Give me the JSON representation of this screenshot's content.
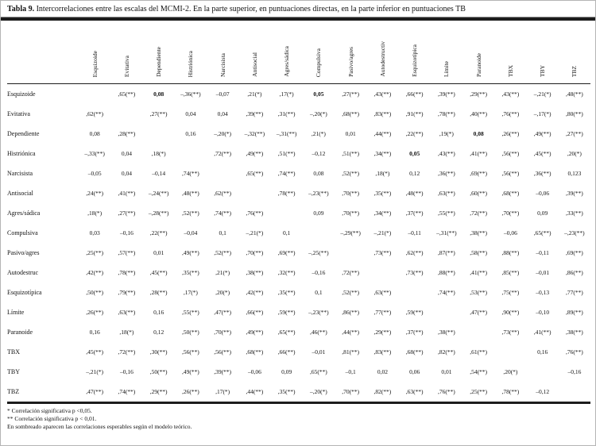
{
  "title": {
    "label": "Tabla 9.",
    "text": "Intercorrelaciones entre las escalas del MCMI-2. En la parte superior, en puntuaciones directas, en la parte inferior en puntuaciones TB"
  },
  "table": {
    "columns": [
      "Esquizoide",
      "Evitativa",
      "Dependiente",
      "Histriónica",
      "Narcisista",
      "Antisocial",
      "Agres/sádica",
      "Compulsiva",
      "Pasivo/agres",
      "Autodestructiv",
      "Esquizotípica",
      "Límite",
      "Paranoide",
      "TBX",
      "TBY",
      "TBZ"
    ],
    "rows": [
      {
        "label": "Esquizoide",
        "values": [
          "",
          ",65(**)",
          "0,08",
          "–,36(**)",
          "–0,07",
          ",21(*)",
          ",17(*)",
          "0,05",
          ",27(**)",
          ",43(**)",
          ",66(**)",
          ",39(**)",
          ",29(**)",
          ",43(**)",
          "–,21(*)",
          ",48(**)"
        ]
      },
      {
        "label": "Evitativa",
        "values": [
          ",62(**)",
          "",
          ",27(**)",
          "0,04",
          "0,04",
          ",39(**)",
          ",31(**)",
          "–,20(*)",
          ",68(**)",
          ",83(**)",
          ",91(**)",
          ",78(**)",
          ",40(**)",
          ",76(**)",
          "–,17(*)",
          ",80(**)"
        ]
      },
      {
        "label": "Dependiente",
        "values": [
          "0,08",
          ",28(**)",
          "",
          "0,16",
          "–,20(*)",
          "–,32(**)",
          "–,31(**)",
          ",21(*)",
          "0,01",
          ",44(**)",
          ",22(**)",
          ",19(*)",
          "0,08",
          ",26(**)",
          ",49(**)",
          ",27(**)"
        ]
      },
      {
        "label": "Histriónica",
        "values": [
          "–,33(**)",
          "0,04",
          ",18(*)",
          "",
          ",72(**)",
          ",49(**)",
          ",51(**)",
          "–0,12",
          ",51(**)",
          ",34(**)",
          "0,05",
          ",43(**)",
          ",41(**)",
          ",56(**)",
          ",45(**)",
          ",20(*)"
        ]
      },
      {
        "label": "Narcisista",
        "values": [
          "–0,05",
          "0,04",
          "–0,14",
          ",74(**)",
          "",
          ",65(**)",
          ",74(**)",
          "0,08",
          ",52(**)",
          ",18(*)",
          "0,12",
          ",36(**)",
          ",69(**)",
          ",56(**)",
          ",36(**)",
          "0,123"
        ]
      },
      {
        "label": "Antisocial",
        "values": [
          ",24(**)",
          ",41(**)",
          "–,24(**)",
          ",48(**)",
          ",62(**)",
          "",
          ",78(**)",
          "–,23(**)",
          ",70(**)",
          ",35(**)",
          ",48(**)",
          ",63(**)",
          ",60(**)",
          ",68(**)",
          "–0,06",
          ",39(**)"
        ]
      },
      {
        "label": "Agres/sádica",
        "values": [
          ",18(*)",
          ",27(**)",
          "–,28(**)",
          ",52(**)",
          ",74(**)",
          ",76(**)",
          "",
          "0,09",
          ",70(**)",
          ",34(**)",
          ",37(**)",
          ",55(**)",
          ",72(**)",
          ",70(**)",
          "0,09",
          ",33(**)"
        ]
      },
      {
        "label": "Compulsiva",
        "values": [
          "0,03",
          "–0,16",
          ",22(**)",
          "–0,04",
          "0,1",
          "–,21(*)",
          "0,1",
          "",
          "–,29(**)",
          "–,21(*)",
          "–0,11",
          "–,31(**)",
          ",38(**)",
          "–0,06",
          ",65(**)",
          "–,23(**)"
        ]
      },
      {
        "label": "Pasivo/agres",
        "values": [
          ",25(**)",
          ",57(**)",
          "0,01",
          ",49(**)",
          ",52(**)",
          ",70(**)",
          ",69(**)",
          "–,25(**)",
          "",
          ",73(**)",
          ",62(**)",
          ",87(**)",
          ",58(**)",
          ",88(**)",
          "–0,11",
          ",69(**)"
        ]
      },
      {
        "label": "Autodestruc",
        "values": [
          ",42(**)",
          ",78(**)",
          ",45(**)",
          ",35(**)",
          ",21(*)",
          ",38(**)",
          ",32(**)",
          "–0,16",
          ",72(**)",
          "",
          ",73(**)",
          ",88(**)",
          ",41(**)",
          ",85(**)",
          "–0,01",
          ",86(**)"
        ]
      },
      {
        "label": "Esquizotípica",
        "values": [
          ",50(**)",
          ",79(**)",
          ",28(**)",
          ",17(*)",
          ",20(*)",
          ",42(**)",
          ",35(**)",
          "0,1",
          ",52(**)",
          ",63(**)",
          "",
          ",74(**)",
          ",53(**)",
          ",75(**)",
          "–0,13",
          ",77(**)"
        ]
      },
      {
        "label": "Límite",
        "values": [
          ",26(**)",
          ",63(**)",
          "0,16",
          ",55(**)",
          ",47(**)",
          ",66(**)",
          ",59(**)",
          "–,23(**)",
          ",86(**)",
          ",77(**)",
          ",59(**)",
          "",
          ",47(**)",
          ",90(**)",
          "–0,10",
          ",89(**)"
        ]
      },
      {
        "label": "Paranoide",
        "values": [
          "0,16",
          ",18(*)",
          "0,12",
          ",50(**)",
          ",70(**)",
          ",49(**)",
          ",65(**)",
          ",46(**)",
          ",44(**)",
          ",29(**)",
          ",37(**)",
          ",38(**)",
          "",
          ",73(**)",
          ",41(**)",
          ",38(**)"
        ]
      },
      {
        "label": "TBX",
        "values": [
          ",45(**)",
          ",72(**)",
          ",30(**)",
          ",56(**)",
          ",56(**)",
          ",68(**)",
          ",66(**)",
          "–0,01",
          ",81(**)",
          ",83(**)",
          ",68(**)",
          ",82(**)",
          ",61(**)",
          "",
          "0,16",
          ",76(**)"
        ]
      },
      {
        "label": "TBY",
        "values": [
          "–,21(*)",
          "–0,16",
          ",50(**)",
          ",49(**)",
          ",39(**)",
          "–0,06",
          "0,09",
          ",65(**)",
          "–0,1",
          "0,02",
          "0,06",
          "0,01",
          ",54(**)",
          ",20(*)",
          "",
          "–0,16"
        ]
      },
      {
        "label": "TBZ",
        "values": [
          ",47(**)",
          ",74(**)",
          ",29(**)",
          ",26(**)",
          ",17(*)",
          ",44(**)",
          ",35(**)",
          "–,20(*)",
          ",70(**)",
          ",82(**)",
          ",63(**)",
          ",76(**)",
          ",25(**)",
          ",78(**)",
          "–0,12",
          ""
        ]
      }
    ],
    "bold_cells": [
      [
        0,
        2
      ],
      [
        0,
        7
      ],
      [
        2,
        12
      ],
      [
        3,
        10
      ]
    ]
  },
  "notes": [
    "* Correlación significativa p <0,05.",
    "** Correlación significativa p < 0,01.",
    "En sombreado aparecen las correlaciones esperables según el modelo teórico."
  ]
}
